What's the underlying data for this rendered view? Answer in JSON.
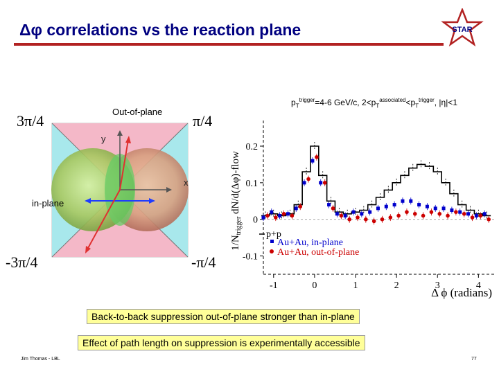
{
  "slide": {
    "title": "Δφ correlations vs the reaction plane",
    "footer_author": "Jim Thomas - LBL",
    "page_number": "77",
    "accent_color": "#000080",
    "rule_color": "#b22222"
  },
  "logo": {
    "text": "STAR",
    "icon": "star-logo-icon"
  },
  "diagram": {
    "angle_top_left": "3π/4",
    "angle_top_right": "π/4",
    "angle_bottom_left": "-3π/4",
    "angle_bottom_right": "-π/4",
    "label_out_of_plane": "Out-of-plane",
    "label_in_plane": "in-plane",
    "axis_y": "y",
    "axis_x": "x"
  },
  "plot": {
    "condition": {
      "pt": "p",
      "t_sub": "T",
      "trigger_sup": "trigger",
      "part1": "=4-6 GeV/c, 2<p",
      "assoc_sup": "associated",
      "part2": "<p",
      "part3": ", |η|<1"
    },
    "ylabel_main": "1/N",
    "ylabel_sub": "trigger",
    "ylabel_rest": " dN/d(Δφ)-flow",
    "xlabel": "Δ ϕ (radians)",
    "legend": [
      "p+p",
      "Au+Au, in-plane",
      "Au+Au, out-of-plane"
    ]
  },
  "chart_data": {
    "type": "line",
    "xlabel": "Δ ϕ (radians)",
    "ylabel": "1/N trigger dN/d(Δφ)-flow",
    "xlim": [
      -1.25,
      4.4
    ],
    "ylim": [
      -0.15,
      0.27
    ],
    "x_ticks": [
      -1,
      0,
      1,
      2,
      3,
      4
    ],
    "y_ticks": [
      -0.1,
      0,
      0.1,
      0.2
    ],
    "legend_position": "bottom-left",
    "x": [
      -1.2,
      -1.0,
      -0.8,
      -0.6,
      -0.4,
      -0.2,
      0.0,
      0.2,
      0.4,
      0.6,
      0.8,
      1.0,
      1.2,
      1.4,
      1.6,
      1.8,
      2.0,
      2.2,
      2.4,
      2.6,
      2.8,
      3.0,
      3.2,
      3.4,
      3.6,
      3.8,
      4.0,
      4.2
    ],
    "series": [
      {
        "name": "p+p",
        "color": "#000000",
        "style": "step",
        "values": [
          0.01,
          0.015,
          0.01,
          0.015,
          0.04,
          0.13,
          0.2,
          0.12,
          0.05,
          0.02,
          0.015,
          0.02,
          0.025,
          0.04,
          0.06,
          0.08,
          0.1,
          0.12,
          0.14,
          0.15,
          0.145,
          0.13,
          0.1,
          0.07,
          0.04,
          0.025,
          0.015,
          0.01
        ]
      },
      {
        "name": "Au+Au, in-plane",
        "color": "#0000cc",
        "style": "markers",
        "values": [
          0.005,
          0.02,
          0.01,
          0.015,
          0.03,
          0.1,
          0.16,
          0.1,
          0.04,
          0.015,
          0.01,
          0.02,
          0.015,
          0.02,
          0.03,
          0.035,
          0.04,
          0.05,
          0.05,
          0.04,
          0.035,
          0.03,
          0.03,
          0.025,
          0.02,
          0.015,
          0.01,
          0.015
        ]
      },
      {
        "name": "Au+Au, out-of-plane",
        "color": "#cc0000",
        "style": "markers",
        "values": [
          0.01,
          0.005,
          0.015,
          0.01,
          0.035,
          0.11,
          0.17,
          0.1,
          0.03,
          0.01,
          0.0,
          0.005,
          0.0,
          -0.005,
          0.0,
          0.005,
          0.01,
          0.02,
          0.015,
          0.01,
          0.02,
          0.015,
          0.01,
          0.02,
          0.015,
          0.005,
          0.01,
          0.0
        ]
      }
    ]
  },
  "notes": [
    "Back-to-back suppression out-of-plane stronger than in-plane",
    "Effect of path length on suppression is experimentally accessible"
  ]
}
